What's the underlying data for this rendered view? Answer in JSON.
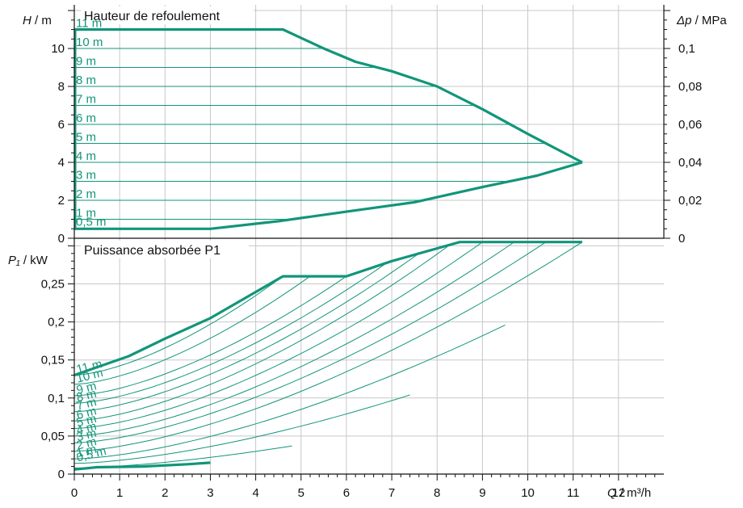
{
  "chart_data": [
    {
      "type": "line",
      "title": "Hauteur de refoulement",
      "ylabel_symbol": "H",
      "ylabel_unit": "/ m",
      "y2label_symbol": "Δp",
      "y2label_unit": "/ MPa",
      "xlim": [
        0,
        13
      ],
      "ylim": [
        0,
        12.3
      ],
      "yticks": [
        "0",
        "2",
        "4",
        "6",
        "8",
        "10"
      ],
      "y2ticks": [
        "0",
        "0,02",
        "0,04",
        "0,06",
        "0,08",
        "0,1"
      ],
      "grid": true,
      "envelope": {
        "upper": [
          [
            0,
            11
          ],
          [
            4.6,
            11
          ],
          [
            5.5,
            10.0
          ],
          [
            6.2,
            9.3
          ],
          [
            7.0,
            8.8
          ],
          [
            8.0,
            8.0
          ],
          [
            9.0,
            6.8
          ],
          [
            10.0,
            5.5
          ],
          [
            11.2,
            4.0
          ]
        ],
        "lower": [
          [
            0,
            0.5
          ],
          [
            3.0,
            0.5
          ],
          [
            4.5,
            0.9
          ],
          [
            6.0,
            1.4
          ],
          [
            7.5,
            1.9
          ],
          [
            9.0,
            2.7
          ],
          [
            10.2,
            3.3
          ],
          [
            11.2,
            4.0
          ]
        ]
      },
      "series": [
        {
          "name": "11 m",
          "head": 11
        },
        {
          "name": "10 m",
          "head": 10
        },
        {
          "name": "9 m",
          "head": 9
        },
        {
          "name": "8 m",
          "head": 8
        },
        {
          "name": "7 m",
          "head": 7
        },
        {
          "name": "6 m",
          "head": 6
        },
        {
          "name": "5 m",
          "head": 5
        },
        {
          "name": "4 m",
          "head": 4
        },
        {
          "name": "3 m",
          "head": 3
        },
        {
          "name": "2 m",
          "head": 2
        },
        {
          "name": "1 m",
          "head": 1
        },
        {
          "name": "0,5 m",
          "head": 0.5
        }
      ]
    },
    {
      "type": "line",
      "title": "Puissance absorbée P1",
      "ylabel_symbol": "P₁",
      "ylabel_unit": "/ kW",
      "xlabel_symbol": "Q",
      "xlabel_unit": "/ m³/h",
      "xlim": [
        0,
        13
      ],
      "ylim": [
        0,
        0.31
      ],
      "xticks": [
        "0",
        "1",
        "2",
        "3",
        "4",
        "5",
        "6",
        "7",
        "8",
        "9",
        "10",
        "11",
        "12"
      ],
      "yticks": [
        "0",
        "0,05",
        "0,1",
        "0,15",
        "0,2",
        "0,25"
      ],
      "grid": true,
      "envelope": {
        "upper": [
          [
            0,
            0.13
          ],
          [
            1.2,
            0.155
          ],
          [
            2.0,
            0.178
          ],
          [
            3.0,
            0.205
          ],
          [
            4.6,
            0.26
          ],
          [
            6.0,
            0.26
          ],
          [
            7.0,
            0.28
          ],
          [
            8.5,
            0.305
          ],
          [
            11.2,
            0.305
          ]
        ],
        "lower": [
          [
            0,
            0.006
          ],
          [
            0.5,
            0.009
          ],
          [
            1.5,
            0.01
          ],
          [
            2.5,
            0.013
          ],
          [
            3.0,
            0.015
          ]
        ]
      },
      "series": [
        {
          "name": "11 m",
          "p0": 0.13,
          "x_end": 4.6,
          "p_end": 0.26
        },
        {
          "name": "10 m",
          "p0": 0.118,
          "x_end": 5.2,
          "p_end": 0.26
        },
        {
          "name": "9 m",
          "p0": 0.103,
          "x_end": 6.0,
          "p_end": 0.26
        },
        {
          "name": "8 m",
          "p0": 0.093,
          "x_end": 6.9,
          "p_end": 0.278
        },
        {
          "name": "7 m",
          "p0": 0.082,
          "x_end": 7.6,
          "p_end": 0.29
        },
        {
          "name": "6 m",
          "p0": 0.07,
          "x_end": 8.3,
          "p_end": 0.302
        },
        {
          "name": "5 m",
          "p0": 0.06,
          "x_end": 9.0,
          "p_end": 0.305
        },
        {
          "name": "4 m",
          "p0": 0.05,
          "x_end": 9.7,
          "p_end": 0.305
        },
        {
          "name": "3 m",
          "p0": 0.041,
          "x_end": 10.4,
          "p_end": 0.305
        },
        {
          "name": "2 m",
          "p0": 0.03,
          "x_end": 11.2,
          "p_end": 0.305
        },
        {
          "name": "1 m",
          "p0": 0.02,
          "x_end": 9.5,
          "p_end": 0.196
        },
        {
          "name": "0,5 m",
          "p0": 0.014,
          "x_end": 7.4,
          "p_end": 0.104
        }
      ],
      "extra_low_curve": {
        "p0": 0.008,
        "x_end": 4.8,
        "p_end": 0.037
      }
    }
  ],
  "colors": {
    "curve": "#12957a",
    "grid": "#c8c8c8",
    "axis": "#111111"
  }
}
